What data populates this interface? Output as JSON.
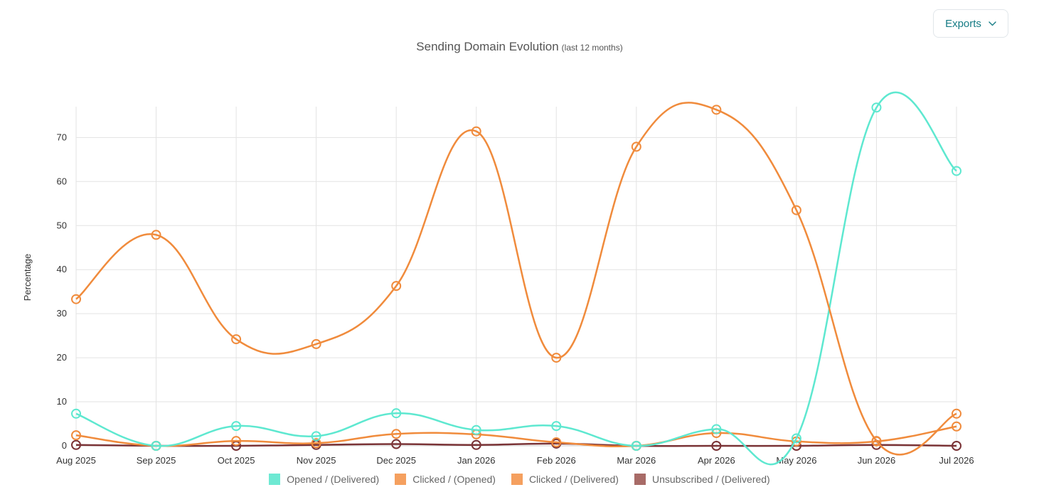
{
  "toolbar": {
    "exports_label": "Exports",
    "exports_icon": "chevron-down-icon"
  },
  "chart_data": {
    "type": "line",
    "title": "Sending Domain Evolution",
    "subtitle": "(last 12 months)",
    "xlabel": "",
    "ylabel": "Percentage",
    "ylim": [
      0,
      77
    ],
    "yticks": [
      0,
      10,
      20,
      30,
      40,
      50,
      60,
      70
    ],
    "grid": true,
    "legend_position": "bottom",
    "categories": [
      "Aug 2025",
      "Sep 2025",
      "Oct 2025",
      "Nov 2025",
      "Dec 2025",
      "Jan 2026",
      "Feb 2026",
      "Mar 2026",
      "Apr 2026",
      "May 2026",
      "Jun 2026",
      "Jul 2026"
    ],
    "series": [
      {
        "name": "Opened / (Delivered)",
        "color": "#6ee9d3",
        "values": [
          7.3,
          0,
          4.5,
          2.2,
          7.4,
          3.6,
          4.5,
          0,
          3.8,
          1.7,
          76.8,
          62.4
        ]
      },
      {
        "name": "Clicked / (Opened)",
        "color": "#f5a05f",
        "values": [
          33.3,
          47.9,
          24.2,
          23.1,
          36.3,
          71.4,
          20,
          67.9,
          76.3,
          53.5,
          1.1,
          7.3
        ]
      },
      {
        "name": "Clicked / (Delivered)",
        "color": "#f5a05f",
        "values": [
          2.4,
          0,
          1.1,
          0.6,
          2.7,
          2.6,
          0.8,
          0,
          2.9,
          1,
          1,
          4.4
        ]
      },
      {
        "name": "Unsubscribed / (Delivered)",
        "color": "#a86b67",
        "values": [
          0.2,
          0,
          0,
          0.2,
          0.4,
          0.2,
          0.5,
          0,
          0,
          0,
          0.2,
          0
        ]
      }
    ]
  }
}
